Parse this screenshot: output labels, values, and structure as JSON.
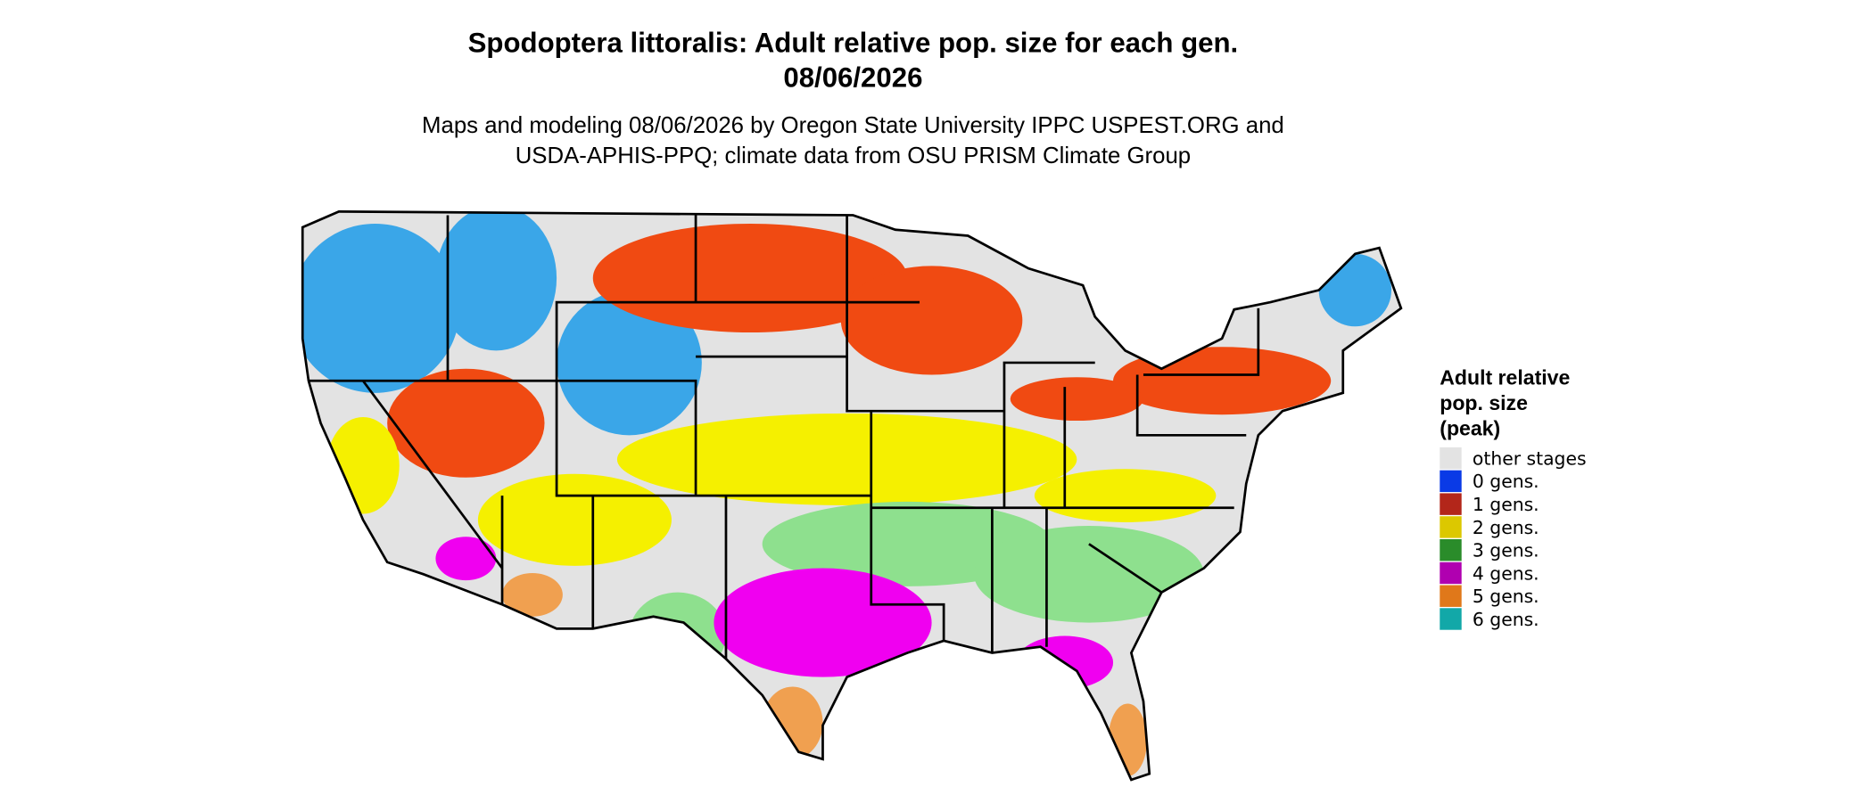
{
  "title": [
    "Spodoptera littoralis: Adult relative pop. size for each gen.",
    "08/06/2026"
  ],
  "subtitle": [
    "Maps and modeling 08/06/2026 by Oregon State University IPPC USPEST.ORG and",
    "USDA-APHIS-PPQ; climate data from OSU PRISM Climate Group"
  ],
  "legend": {
    "title": [
      "Adult relative",
      "pop. size",
      "(peak)"
    ],
    "items": [
      {
        "label": "other stages",
        "color": "#e3e3e3"
      },
      {
        "label": "0 gens.",
        "color": "#0a3ae6"
      },
      {
        "label": "1 gens.",
        "color": "#b3261a"
      },
      {
        "label": "2 gens.",
        "color": "#dcc800"
      },
      {
        "label": "3 gens.",
        "color": "#2a8c2a"
      },
      {
        "label": "4 gens.",
        "color": "#b000b0"
      },
      {
        "label": "5 gens.",
        "color": "#e0781a"
      },
      {
        "label": "6 gens.",
        "color": "#12a8a8"
      }
    ]
  }
}
